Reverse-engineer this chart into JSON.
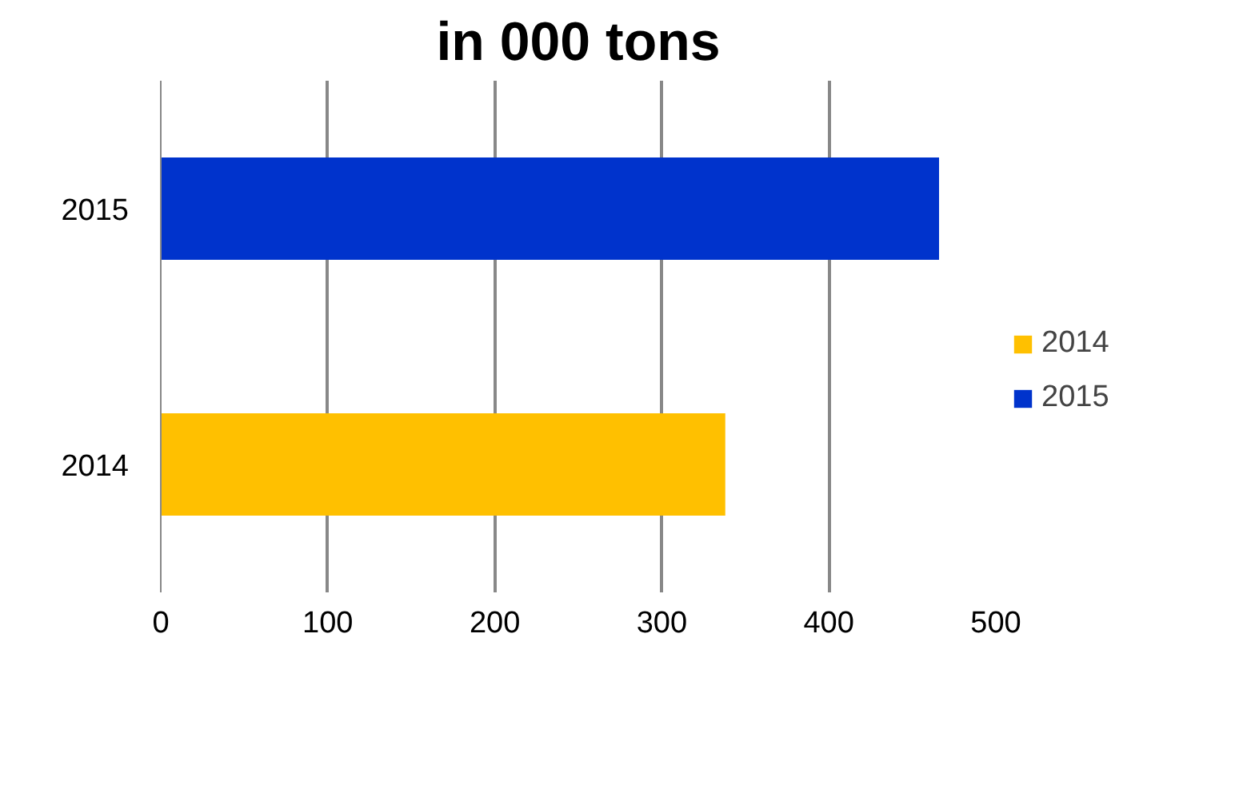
{
  "chart_data": {
    "type": "bar",
    "orientation": "horizontal",
    "title": "in 000 tons",
    "categories": [
      "2015",
      "2014"
    ],
    "series": [
      {
        "name": "2014",
        "color": "#ffc000",
        "values": [
          null,
          338
        ]
      },
      {
        "name": "2015",
        "color": "#0033cc",
        "values": [
          466,
          null
        ]
      }
    ],
    "xlim": [
      0,
      500
    ],
    "xticks": [
      0,
      100,
      200,
      300,
      400,
      500
    ],
    "grid": "x",
    "legend": "right"
  }
}
